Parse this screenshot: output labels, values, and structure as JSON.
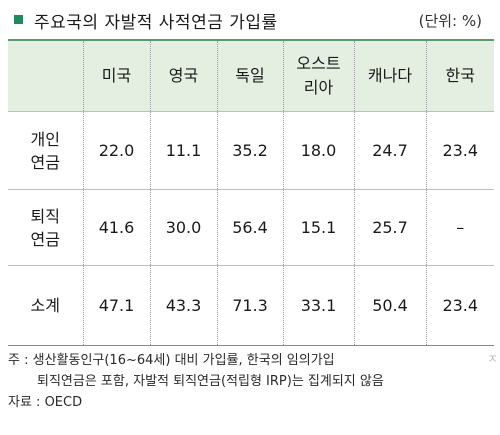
{
  "title": "주요국의 자발적 사적연금 가입률",
  "unit": "(단위: %)",
  "table": {
    "columns": [
      "",
      "미국",
      "영국",
      "독일",
      "오스트\n리아",
      "캐나다",
      "한국"
    ],
    "rows": [
      {
        "label": "개인\n연금",
        "values": [
          "22.0",
          "11.1",
          "35.2",
          "18.0",
          "24.7",
          "23.4"
        ]
      },
      {
        "label": "퇴직\n연금",
        "values": [
          "41.6",
          "30.0",
          "56.4",
          "15.1",
          "25.7",
          "–"
        ]
      },
      {
        "label": "소계",
        "values": [
          "47.1",
          "43.3",
          "71.3",
          "33.1",
          "50.4",
          "23.4"
        ]
      }
    ]
  },
  "notes": {
    "line1": "주 : 생산활동인구(16~64세) 대비 가입률, 한국의 임의가입",
    "line2": "퇴직연금은 포함, 자발적 퇴직연금(적립형 IRP)는 집계되지 않음",
    "source": "자료 : OECD"
  },
  "edge_glyph": "ㅈ",
  "colors": {
    "header_bg": "#e4efe2",
    "accent": "#1f8a5c",
    "top_rule": "#5a9a6e"
  }
}
